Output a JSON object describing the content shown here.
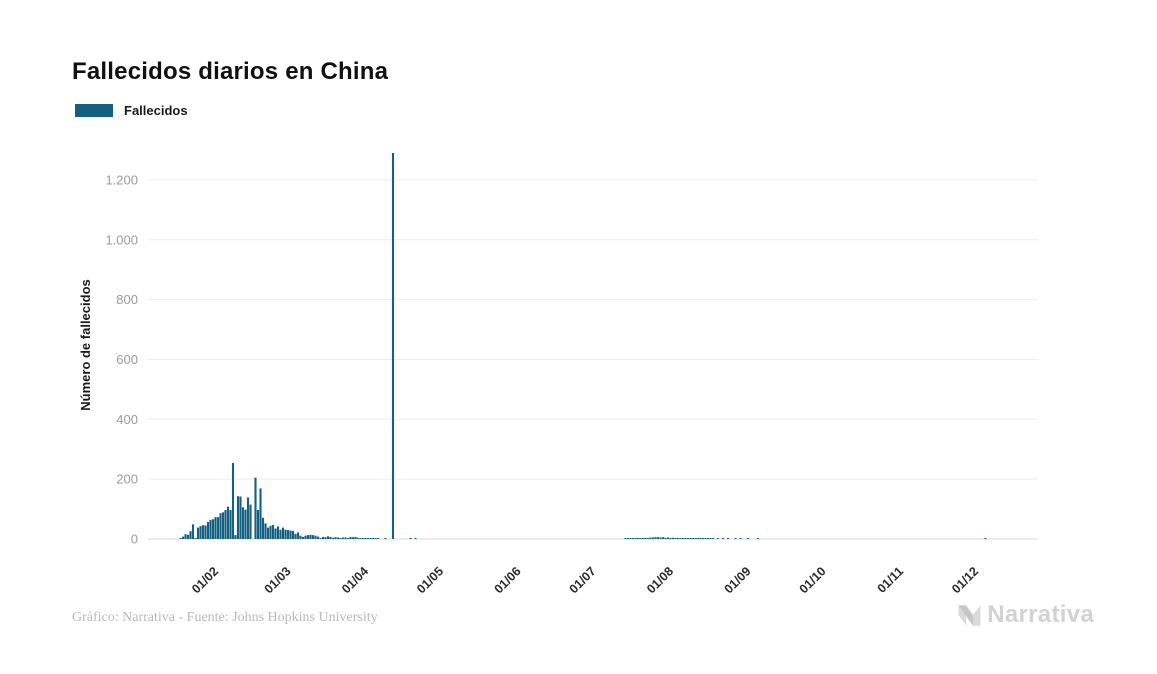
{
  "title": "Fallecidos diarios en China",
  "legend": {
    "label": "Fallecidos",
    "color": "#15607f"
  },
  "footer": {
    "credit": "Gráfico: Narrativa - Fuente: Johns Hopkins University"
  },
  "logo": {
    "text": "Narrativa",
    "color": "#d2d2d2"
  },
  "chart_data": {
    "type": "bar",
    "title": "Fallecidos diarios en China",
    "series_name": "Fallecidos",
    "xlabel": "",
    "ylabel": "Número de fallecidos",
    "ylim": [
      0,
      1300
    ],
    "yticks": [
      0,
      200,
      400,
      600,
      800,
      1000,
      1200
    ],
    "ytick_labels": [
      "0",
      "200",
      "400",
      "600",
      "800",
      "1.000",
      "1.200"
    ],
    "xticks": [
      {
        "date": "2020-02-01",
        "label": "01/02"
      },
      {
        "date": "2020-03-01",
        "label": "01/03"
      },
      {
        "date": "2020-04-01",
        "label": "01/04"
      },
      {
        "date": "2020-05-01",
        "label": "01/05"
      },
      {
        "date": "2020-06-01",
        "label": "01/06"
      },
      {
        "date": "2020-07-01",
        "label": "01/07"
      },
      {
        "date": "2020-08-01",
        "label": "01/08"
      },
      {
        "date": "2020-09-01",
        "label": "01/09"
      },
      {
        "date": "2020-10-01",
        "label": "01/10"
      },
      {
        "date": "2020-11-01",
        "label": "01/11"
      },
      {
        "date": "2020-12-01",
        "label": "01/12"
      }
    ],
    "x_domain": [
      "2020-01-10",
      "2020-12-31"
    ],
    "grid": true,
    "legend_position": "top-left",
    "bar_color": "#15607f",
    "grid_color": "#ededed",
    "baseline_color": "#d9d9d9",
    "ytick_color": "#9b9b9b",
    "xtick_color": "#2b2b2b",
    "max_value": 1290,
    "segments": [
      {
        "start": "2020-01-23",
        "values": [
          1,
          8,
          16,
          14,
          26,
          49,
          2,
          38,
          43,
          46,
          45,
          57,
          64,
          66,
          73,
          73,
          86,
          89,
          97,
          108,
          97,
          254,
          13,
          143,
          142,
          106,
          98,
          139,
          115,
          0,
          205,
          97,
          169,
          71,
          52,
          38,
          44,
          47,
          35,
          42,
          31,
          38,
          31,
          30,
          28,
          27,
          17,
          22,
          11,
          7,
          11,
          13,
          14,
          13,
          11,
          8,
          3,
          7,
          6,
          9,
          7,
          4,
          6,
          5,
          3,
          5,
          5,
          1,
          7,
          6,
          7,
          4,
          3,
          2,
          1,
          1,
          2,
          1,
          1,
          2,
          0,
          0,
          1,
          0,
          0,
          1290,
          0,
          0,
          0,
          0,
          0,
          0,
          1,
          0,
          1,
          0,
          0,
          0,
          0
        ]
      },
      {
        "start": "2020-07-19",
        "values": [
          2,
          1,
          1,
          2,
          1,
          2,
          3,
          2,
          4,
          3,
          5,
          5,
          6,
          6,
          5,
          6,
          4,
          5,
          3,
          4,
          3,
          3,
          2,
          2,
          3,
          2,
          3,
          2,
          2,
          1,
          2,
          2,
          1,
          1,
          1,
          1,
          0,
          1,
          0,
          1,
          0,
          1,
          0,
          0,
          1,
          0,
          1,
          0,
          0,
          1,
          0,
          0,
          0,
          1
        ]
      },
      {
        "start": "2020-12-10",
        "values": [
          3
        ]
      }
    ]
  }
}
